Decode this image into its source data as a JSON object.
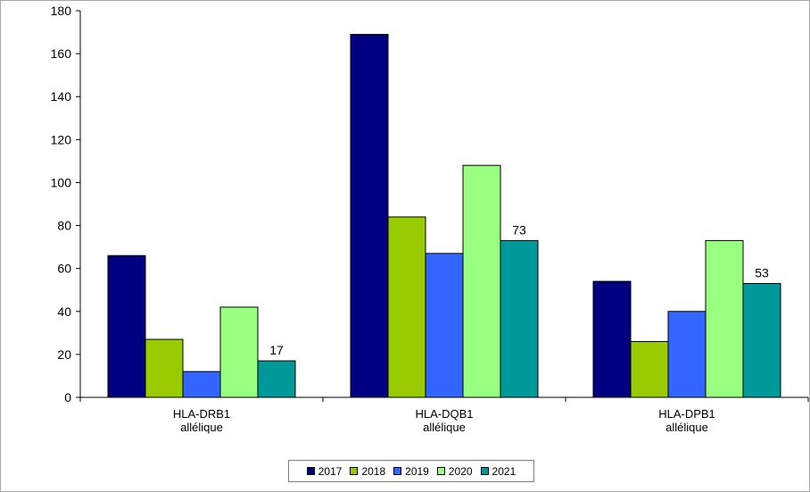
{
  "chart_data": {
    "type": "bar",
    "categories": [
      [
        "HLA-DRB1",
        "allélique"
      ],
      [
        "HLA-DQB1",
        "allélique"
      ],
      [
        "HLA-DPB1",
        "allélique"
      ]
    ],
    "series": [
      {
        "name": "2017",
        "color": "#000080",
        "values": [
          66,
          169,
          54
        ]
      },
      {
        "name": "2018",
        "color": "#99cc00",
        "values": [
          27,
          84,
          26
        ]
      },
      {
        "name": "2019",
        "color": "#3366ff",
        "values": [
          12,
          67,
          40
        ]
      },
      {
        "name": "2020",
        "color": "#99ff80",
        "values": [
          42,
          108,
          73
        ]
      },
      {
        "name": "2021",
        "color": "#009999",
        "values": [
          17,
          73,
          53
        ]
      }
    ],
    "data_labels_series": "2021",
    "ylim": [
      0,
      180
    ],
    "yticks": [
      0,
      20,
      40,
      60,
      80,
      100,
      120,
      140,
      160,
      180
    ],
    "grid": false,
    "legend_position": "bottom",
    "title": "",
    "xlabel": "",
    "ylabel": ""
  }
}
